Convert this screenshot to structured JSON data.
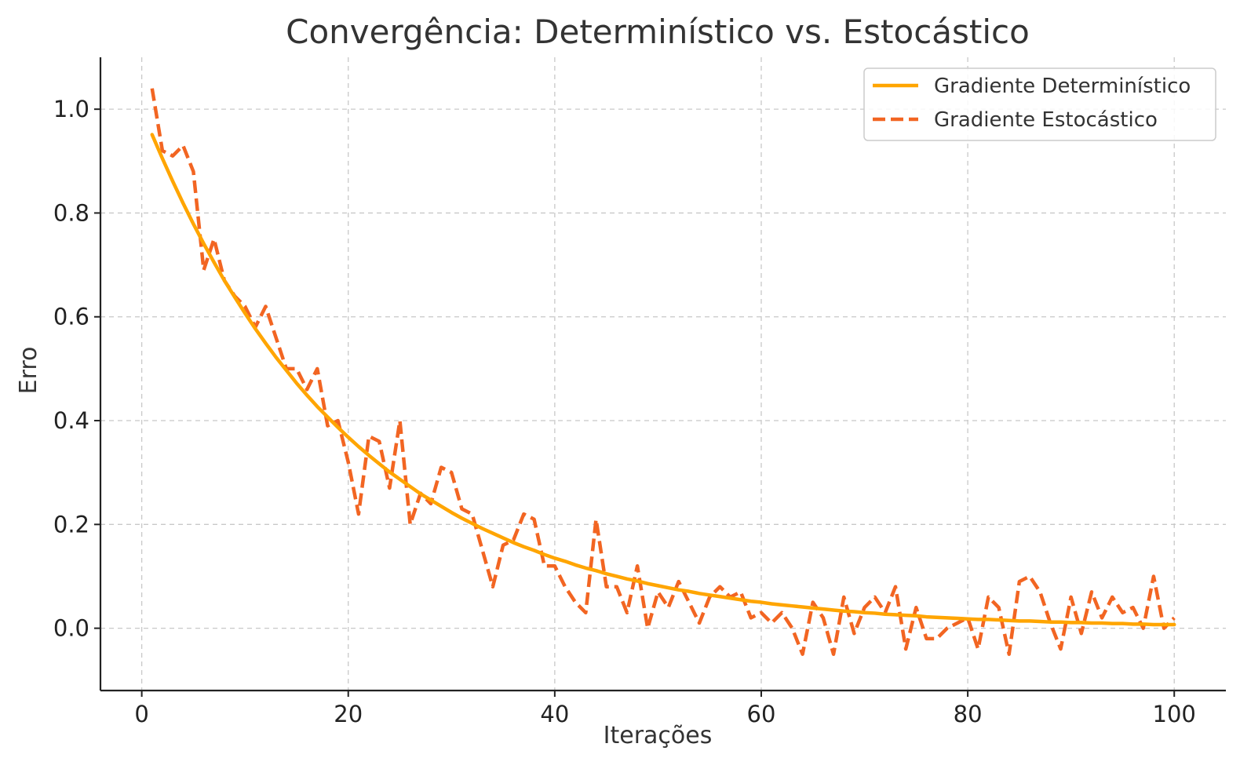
{
  "chart_data": {
    "type": "line",
    "title": "Convergência: Determinístico vs. Estocástico",
    "xlabel": "Iterações",
    "ylabel": "Erro",
    "xlim": [
      -4,
      105
    ],
    "ylim": [
      -0.12,
      1.1
    ],
    "xticks": [
      0,
      20,
      40,
      60,
      80,
      100
    ],
    "yticks": [
      0.0,
      0.2,
      0.4,
      0.6,
      0.8,
      1.0
    ],
    "xtick_labels": [
      "0",
      "20",
      "40",
      "60",
      "80",
      "100"
    ],
    "ytick_labels": [
      "0.0",
      "0.2",
      "0.4",
      "0.6",
      "0.8",
      "1.0"
    ],
    "grid": true,
    "legend_position": "top-right",
    "x": [
      1,
      2,
      3,
      4,
      5,
      6,
      7,
      8,
      9,
      10,
      11,
      12,
      13,
      14,
      15,
      16,
      17,
      18,
      19,
      20,
      21,
      22,
      23,
      24,
      25,
      26,
      27,
      28,
      29,
      30,
      31,
      32,
      33,
      34,
      35,
      36,
      37,
      38,
      39,
      40,
      41,
      42,
      43,
      44,
      45,
      46,
      47,
      48,
      49,
      50,
      51,
      52,
      53,
      54,
      55,
      56,
      57,
      58,
      59,
      60,
      61,
      62,
      63,
      64,
      65,
      66,
      67,
      68,
      69,
      70,
      71,
      72,
      73,
      74,
      75,
      76,
      77,
      78,
      79,
      80,
      81,
      82,
      83,
      84,
      85,
      86,
      87,
      88,
      89,
      90,
      91,
      92,
      93,
      94,
      95,
      96,
      97,
      98,
      99,
      100
    ],
    "series": [
      {
        "name": "Gradiente Determinístico",
        "color": "#FFA500",
        "style": "solid",
        "values": [
          0.951,
          0.905,
          0.861,
          0.819,
          0.779,
          0.741,
          0.705,
          0.67,
          0.638,
          0.607,
          0.577,
          0.549,
          0.522,
          0.497,
          0.472,
          0.449,
          0.427,
          0.407,
          0.387,
          0.368,
          0.35,
          0.333,
          0.317,
          0.301,
          0.287,
          0.273,
          0.259,
          0.247,
          0.235,
          0.223,
          0.212,
          0.202,
          0.192,
          0.183,
          0.174,
          0.165,
          0.157,
          0.15,
          0.142,
          0.135,
          0.129,
          0.122,
          0.116,
          0.111,
          0.105,
          0.1,
          0.095,
          0.091,
          0.086,
          0.082,
          0.078,
          0.074,
          0.071,
          0.067,
          0.064,
          0.061,
          0.058,
          0.055,
          0.052,
          0.05,
          0.047,
          0.045,
          0.043,
          0.041,
          0.039,
          0.037,
          0.035,
          0.033,
          0.032,
          0.03,
          0.029,
          0.027,
          0.026,
          0.025,
          0.024,
          0.022,
          0.021,
          0.02,
          0.019,
          0.018,
          0.017,
          0.017,
          0.016,
          0.015,
          0.014,
          0.014,
          0.013,
          0.012,
          0.012,
          0.011,
          0.011,
          0.01,
          0.01,
          0.009,
          0.009,
          0.008,
          0.008,
          0.007,
          0.007,
          0.007
        ]
      },
      {
        "name": "Gradiente Estocástico",
        "color": "#F26522",
        "style": "dashed",
        "values": [
          1.04,
          0.92,
          0.91,
          0.93,
          0.88,
          0.69,
          0.75,
          0.67,
          0.64,
          0.62,
          0.58,
          0.62,
          0.56,
          0.5,
          0.5,
          0.46,
          0.5,
          0.39,
          0.4,
          0.32,
          0.22,
          0.37,
          0.36,
          0.27,
          0.4,
          0.2,
          0.26,
          0.24,
          0.31,
          0.3,
          0.23,
          0.22,
          0.15,
          0.08,
          0.16,
          0.17,
          0.22,
          0.21,
          0.12,
          0.12,
          0.08,
          0.05,
          0.03,
          0.21,
          0.08,
          0.08,
          0.03,
          0.12,
          0.0,
          0.07,
          0.04,
          0.09,
          0.05,
          0.01,
          0.06,
          0.08,
          0.06,
          0.07,
          0.02,
          0.03,
          0.01,
          0.03,
          0.0,
          -0.05,
          0.05,
          0.02,
          -0.05,
          0.06,
          -0.01,
          0.04,
          0.06,
          0.03,
          0.08,
          -0.04,
          0.04,
          -0.02,
          -0.02,
          0.0,
          0.01,
          0.02,
          -0.04,
          0.06,
          0.04,
          -0.05,
          0.09,
          0.1,
          0.07,
          0.01,
          -0.04,
          0.06,
          -0.01,
          0.07,
          0.02,
          0.06,
          0.03,
          0.04,
          0.0,
          0.1,
          0.0,
          0.02
        ]
      }
    ]
  }
}
